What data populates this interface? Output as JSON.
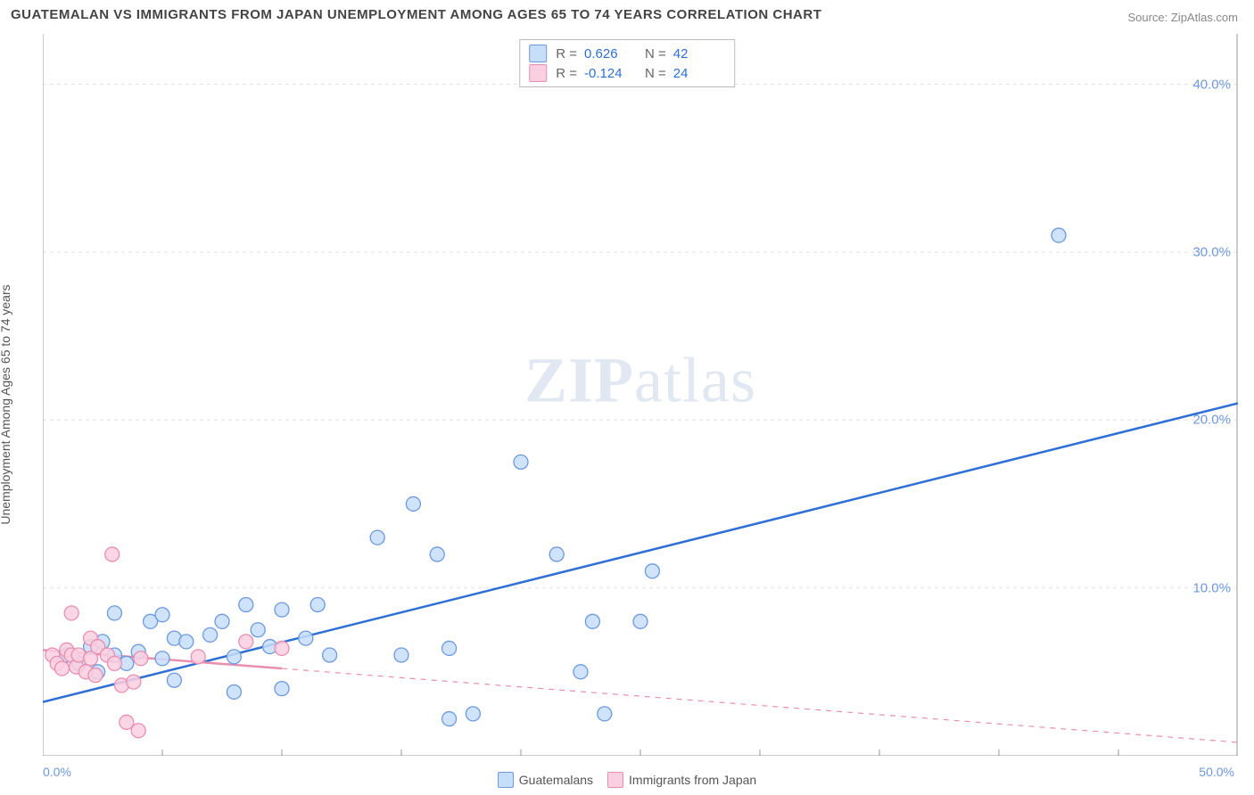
{
  "title": "GUATEMALAN VS IMMIGRANTS FROM JAPAN UNEMPLOYMENT AMONG AGES 65 TO 74 YEARS CORRELATION CHART",
  "source_label": "Source: ",
  "source_name": "ZipAtlas.com",
  "y_axis_label": "Unemployment Among Ages 65 to 74 years",
  "watermark_bold": "ZIP",
  "watermark_rest": "atlas",
  "chart": {
    "type": "scatter",
    "xlim": [
      0,
      50
    ],
    "ylim": [
      0,
      43
    ],
    "x_zero_label": "0.0%",
    "x_max_label": "50.0%",
    "x_ticks": [
      5,
      10,
      15,
      20,
      25,
      30,
      35,
      40,
      45
    ],
    "y_ticks": [
      {
        "v": 10,
        "label": "10.0%"
      },
      {
        "v": 20,
        "label": "20.0%"
      },
      {
        "v": 30,
        "label": "30.0%"
      },
      {
        "v": 40,
        "label": "40.0%"
      }
    ],
    "y_tick_color": "#6d99e0",
    "grid_color": "#e3e3e3",
    "axis_line_color": "#999999",
    "background_color": "#ffffff",
    "marker_radius": 8,
    "marker_stroke_width": 1.3,
    "trendline_width": 2.5,
    "series": [
      {
        "name": "Guatemalans",
        "fill": "#c7defb",
        "stroke": "#6d99e0",
        "trend_solid": true,
        "trend_color": "#2e6fd6",
        "trend": {
          "x1": 0,
          "y1": 3.2,
          "x2": 50,
          "y2": 21.0
        },
        "stats": {
          "R": "0.626",
          "N": "42"
        },
        "points": [
          [
            1.0,
            6.0
          ],
          [
            1.5,
            5.5
          ],
          [
            2.0,
            6.5
          ],
          [
            2.3,
            5.0
          ],
          [
            2.5,
            6.8
          ],
          [
            3.0,
            6.0
          ],
          [
            3.0,
            8.5
          ],
          [
            3.5,
            5.5
          ],
          [
            4.0,
            6.2
          ],
          [
            4.5,
            8.0
          ],
          [
            5.0,
            5.8
          ],
          [
            5.0,
            8.4
          ],
          [
            5.5,
            4.5
          ],
          [
            5.5,
            7.0
          ],
          [
            6.0,
            6.8
          ],
          [
            7.0,
            7.2
          ],
          [
            7.5,
            8.0
          ],
          [
            8.0,
            5.9
          ],
          [
            8.0,
            3.8
          ],
          [
            8.5,
            9.0
          ],
          [
            9.0,
            7.5
          ],
          [
            9.5,
            6.5
          ],
          [
            10.0,
            8.7
          ],
          [
            10.0,
            4.0
          ],
          [
            11.0,
            7.0
          ],
          [
            11.5,
            9.0
          ],
          [
            12.0,
            6.0
          ],
          [
            14.0,
            13.0
          ],
          [
            15.0,
            6.0
          ],
          [
            15.5,
            15.0
          ],
          [
            16.5,
            12.0
          ],
          [
            17.0,
            2.2
          ],
          [
            17.0,
            6.4
          ],
          [
            18.0,
            2.5
          ],
          [
            20.0,
            17.5
          ],
          [
            21.5,
            12.0
          ],
          [
            22.5,
            5.0
          ],
          [
            23.0,
            8.0
          ],
          [
            23.5,
            2.5
          ],
          [
            25.0,
            8.0
          ],
          [
            25.5,
            11.0
          ],
          [
            42.5,
            31.0
          ]
        ]
      },
      {
        "name": "Immigrants from Japan",
        "fill": "#fbcfdf",
        "stroke": "#e88fb0",
        "trend_solid": false,
        "trend_color": "#e88fb0",
        "trend": {
          "x1": 0,
          "y1": 6.3,
          "x2": 50,
          "y2": 0.8
        },
        "trend_solid_end_x": 10,
        "stats": {
          "R": "-0.124",
          "N": "24"
        },
        "points": [
          [
            0.4,
            6.0
          ],
          [
            0.6,
            5.5
          ],
          [
            0.8,
            5.2
          ],
          [
            1.0,
            6.3
          ],
          [
            1.2,
            6.0
          ],
          [
            1.2,
            8.5
          ],
          [
            1.4,
            5.3
          ],
          [
            1.5,
            6.0
          ],
          [
            1.8,
            5.0
          ],
          [
            2.0,
            7.0
          ],
          [
            2.0,
            5.8
          ],
          [
            2.2,
            4.8
          ],
          [
            2.3,
            6.5
          ],
          [
            2.7,
            6.0
          ],
          [
            2.9,
            12.0
          ],
          [
            3.0,
            5.5
          ],
          [
            3.3,
            4.2
          ],
          [
            3.5,
            2.0
          ],
          [
            3.8,
            4.4
          ],
          [
            4.0,
            1.5
          ],
          [
            4.1,
            5.8
          ],
          [
            6.5,
            5.9
          ],
          [
            8.5,
            6.8
          ],
          [
            10.0,
            6.4
          ]
        ]
      }
    ]
  },
  "bottom_legend": {
    "items": [
      {
        "label": "Guatemalans",
        "fill": "#c7defb",
        "stroke": "#6d99e0"
      },
      {
        "label": "Immigrants from Japan",
        "fill": "#fbcfdf",
        "stroke": "#e88fb0"
      }
    ]
  },
  "stats_box": {
    "R_label": "R =",
    "N_label": "N =",
    "rows": [
      {
        "fill": "#c7defb",
        "stroke": "#6d99e0",
        "R": "0.626",
        "N": "42",
        "color": "#2e6fd6"
      },
      {
        "fill": "#fbcfdf",
        "stroke": "#e88fb0",
        "R": "-0.124",
        "N": "24",
        "color": "#2e6fd6"
      }
    ]
  }
}
